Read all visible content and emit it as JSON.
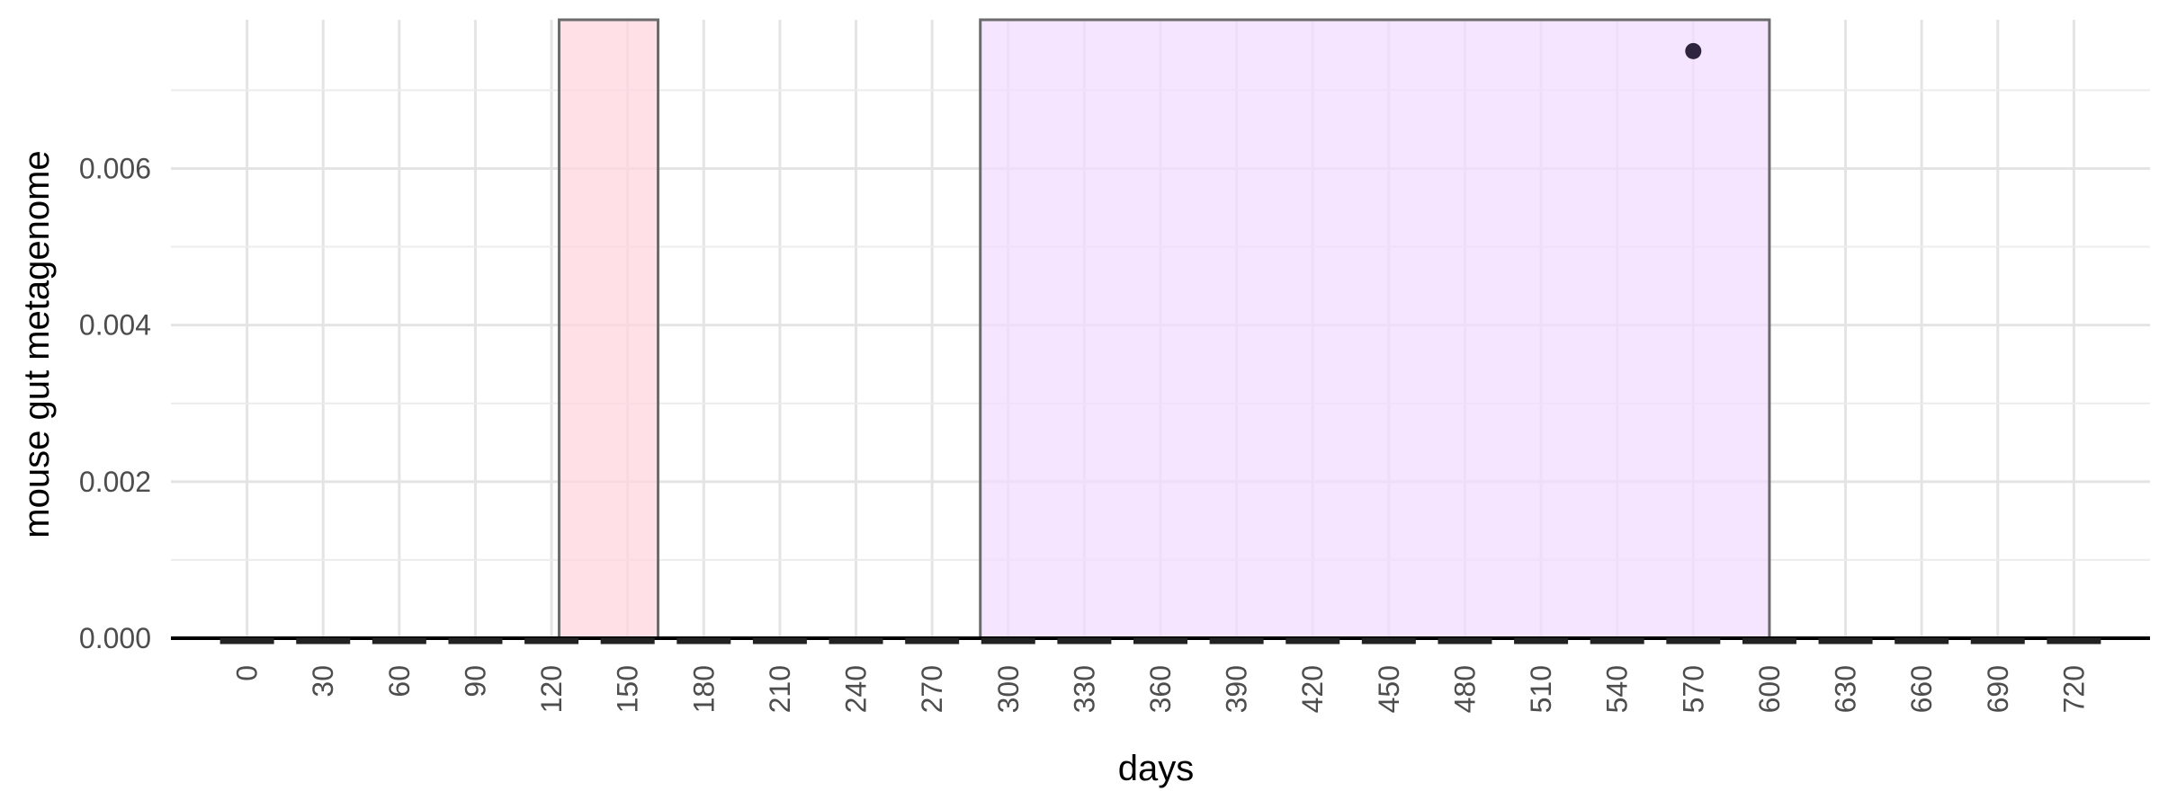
{
  "chart_data": {
    "type": "scatter",
    "title": "",
    "xlabel": "days",
    "ylabel": "mouse gut metagenome",
    "xlim": [
      -30,
      750
    ],
    "ylim": [
      0,
      0.0079
    ],
    "x_ticks": [
      0,
      30,
      60,
      90,
      120,
      150,
      180,
      210,
      240,
      270,
      300,
      330,
      360,
      390,
      420,
      450,
      480,
      510,
      540,
      570,
      600,
      630,
      660,
      690,
      720
    ],
    "x_tick_labels": [
      "0",
      "30",
      "60",
      "90",
      "120",
      "150",
      "180",
      "210",
      "240",
      "270",
      "300",
      "330",
      "360",
      "390",
      "420",
      "450",
      "480",
      "510",
      "540",
      "570",
      "600",
      "630",
      "660",
      "690",
      "720"
    ],
    "y_ticks": [
      0,
      0.002,
      0.004,
      0.006
    ],
    "y_tick_labels": [
      "0.000",
      "0.002",
      "0.004",
      "0.006"
    ],
    "grid": true,
    "shaded_periods": [
      {
        "x_start": 123,
        "x_end": 162,
        "color": "#ffd6df"
      },
      {
        "x_start": 289,
        "x_end": 600,
        "color": "#f1dcff"
      }
    ],
    "baseline_segments": [
      0,
      30,
      60,
      90,
      120,
      150,
      180,
      210,
      240,
      270,
      300,
      330,
      360,
      390,
      420,
      450,
      480,
      510,
      540,
      570,
      600,
      630,
      660,
      690,
      720
    ],
    "points": [
      {
        "x": 570,
        "y": 0.0075
      }
    ],
    "point_color": "#2e2440"
  }
}
